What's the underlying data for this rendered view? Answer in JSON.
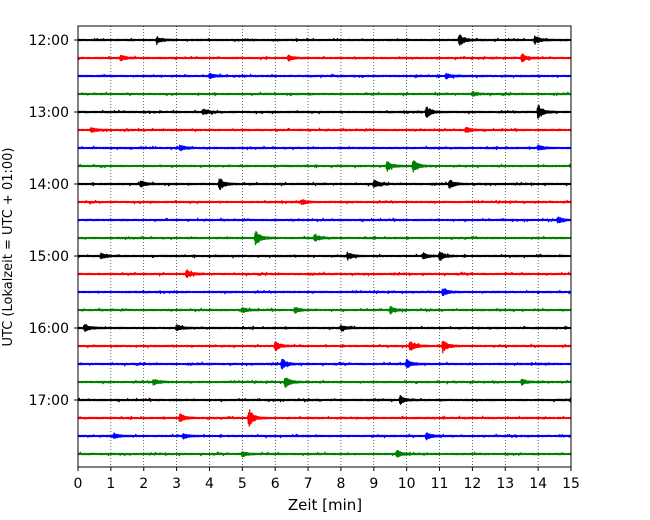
{
  "chart_data": {
    "type": "line",
    "title": "",
    "xlabel": "Zeit  [min]",
    "ylabel": "UTC (Lokalzeit = UTC + 01:00)",
    "xlim": [
      0,
      15
    ],
    "x_ticks": [
      "0",
      "1",
      "2",
      "3",
      "4",
      "5",
      "6",
      "7",
      "8",
      "9",
      "10",
      "11",
      "12",
      "13",
      "14",
      "15"
    ],
    "y_ticks": [
      "12:00",
      "13:00",
      "14:00",
      "15:00",
      "16:00",
      "17:00"
    ],
    "grid": "vertical dotted lines at each minute",
    "trace_interval_minutes": 15,
    "color_cycle": [
      "#000000",
      "#ff0000",
      "#0000ff",
      "#008000"
    ],
    "series": [
      {
        "start": "12:00",
        "color": "#000000",
        "events": [
          [
            2.4,
            0.35
          ],
          [
            11.6,
            0.7
          ],
          [
            13.9,
            0.45
          ]
        ]
      },
      {
        "start": "12:15",
        "color": "#ff0000",
        "events": [
          [
            1.3,
            0.3
          ],
          [
            6.4,
            0.3
          ],
          [
            13.5,
            0.45
          ]
        ]
      },
      {
        "start": "12:30",
        "color": "#0000ff",
        "events": [
          [
            4.0,
            0.3
          ],
          [
            11.2,
            0.3
          ]
        ]
      },
      {
        "start": "12:45",
        "color": "#008000",
        "events": [
          [
            12.0,
            0.25
          ]
        ]
      },
      {
        "start": "13:00",
        "color": "#000000",
        "events": [
          [
            3.8,
            0.35
          ],
          [
            10.6,
            0.65
          ],
          [
            14.0,
            0.8
          ]
        ]
      },
      {
        "start": "13:15",
        "color": "#ff0000",
        "events": [
          [
            0.4,
            0.3
          ],
          [
            11.8,
            0.3
          ]
        ]
      },
      {
        "start": "13:30",
        "color": "#0000ff",
        "events": [
          [
            3.1,
            0.3
          ],
          [
            14.0,
            0.3
          ]
        ]
      },
      {
        "start": "13:45",
        "color": "#008000",
        "events": [
          [
            9.4,
            0.55
          ],
          [
            10.2,
            0.7
          ]
        ]
      },
      {
        "start": "14:00",
        "color": "#000000",
        "events": [
          [
            1.9,
            0.35
          ],
          [
            4.3,
            0.7
          ],
          [
            9.0,
            0.45
          ],
          [
            11.3,
            0.5
          ]
        ]
      },
      {
        "start": "14:15",
        "color": "#ff0000",
        "events": [
          [
            6.8,
            0.3
          ]
        ]
      },
      {
        "start": "14:30",
        "color": "#0000ff",
        "events": [
          [
            14.6,
            0.35
          ]
        ]
      },
      {
        "start": "14:45",
        "color": "#008000",
        "events": [
          [
            5.4,
            0.9
          ],
          [
            7.2,
            0.4
          ]
        ]
      },
      {
        "start": "15:00",
        "color": "#000000",
        "events": [
          [
            0.7,
            0.35
          ],
          [
            8.2,
            0.4
          ],
          [
            10.5,
            0.35
          ],
          [
            11.0,
            0.55
          ]
        ]
      },
      {
        "start": "15:15",
        "color": "#ff0000",
        "events": [
          [
            3.3,
            0.45
          ]
        ]
      },
      {
        "start": "15:30",
        "color": "#0000ff",
        "events": [
          [
            11.1,
            0.4
          ]
        ]
      },
      {
        "start": "15:45",
        "color": "#008000",
        "events": [
          [
            5.0,
            0.3
          ],
          [
            6.6,
            0.3
          ],
          [
            9.5,
            0.35
          ]
        ]
      },
      {
        "start": "16:00",
        "color": "#000000",
        "events": [
          [
            0.2,
            0.45
          ],
          [
            3.0,
            0.35
          ],
          [
            8.0,
            0.3
          ]
        ]
      },
      {
        "start": "16:15",
        "color": "#ff0000",
        "events": [
          [
            6.0,
            0.55
          ],
          [
            10.1,
            0.6
          ],
          [
            11.1,
            0.7
          ]
        ]
      },
      {
        "start": "16:30",
        "color": "#0000ff",
        "events": [
          [
            6.2,
            0.6
          ],
          [
            10.0,
            0.5
          ]
        ]
      },
      {
        "start": "16:45",
        "color": "#008000",
        "events": [
          [
            2.3,
            0.35
          ],
          [
            6.3,
            0.65
          ],
          [
            13.5,
            0.3
          ]
        ]
      },
      {
        "start": "17:00",
        "color": "#000000",
        "events": [
          [
            9.8,
            0.45
          ],
          [
            15.0,
            0.4
          ]
        ]
      },
      {
        "start": "17:15",
        "color": "#ff0000",
        "events": [
          [
            3.1,
            0.5
          ],
          [
            5.2,
            1.0
          ]
        ]
      },
      {
        "start": "17:30",
        "color": "#0000ff",
        "events": [
          [
            1.1,
            0.3
          ],
          [
            3.2,
            0.3
          ],
          [
            10.6,
            0.4
          ]
        ]
      },
      {
        "start": "17:45",
        "color": "#008000",
        "events": [
          [
            5.0,
            0.3
          ],
          [
            9.7,
            0.4
          ]
        ]
      }
    ]
  }
}
